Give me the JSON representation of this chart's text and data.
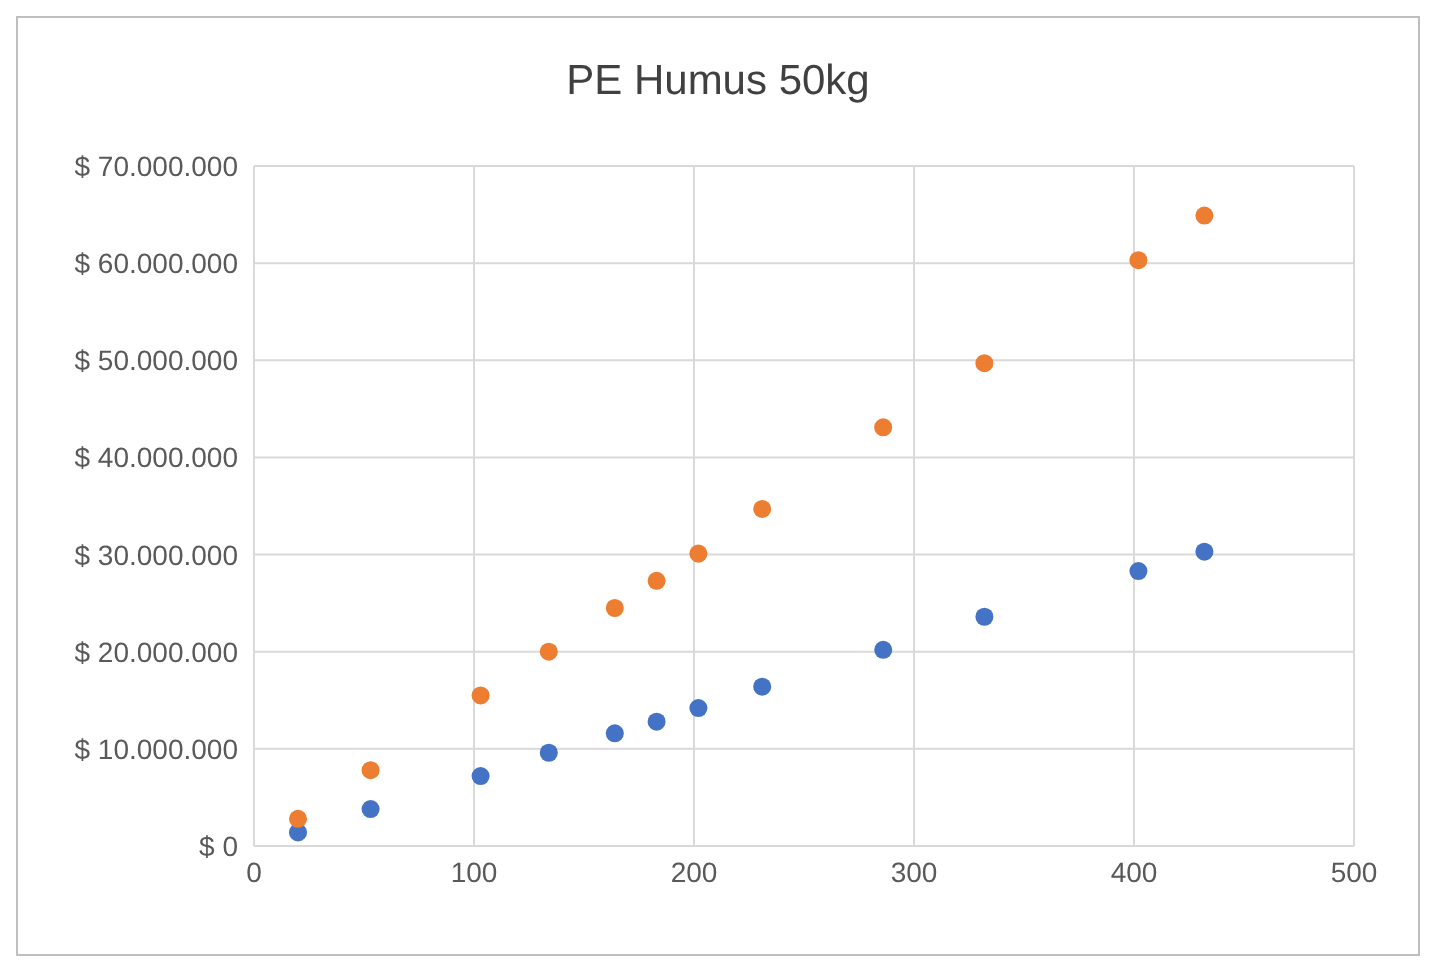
{
  "chart_data": {
    "type": "scatter",
    "title": "PE Humus 50kg",
    "x": [
      20,
      53,
      103,
      134,
      164,
      183,
      202,
      231,
      286,
      332,
      402,
      432
    ],
    "series": [
      {
        "color": "#4472c4",
        "values": [
          1400000,
          3800000,
          7200000,
          9600000,
          11600000,
          12800000,
          14200000,
          16400000,
          20200000,
          23600000,
          28300000,
          30300000
        ]
      },
      {
        "color": "#ed7d31",
        "values": [
          2800000,
          7800000,
          15500000,
          20000000,
          24500000,
          27300000,
          30100000,
          34700000,
          43100000,
          49700000,
          60300000,
          64900000
        ]
      }
    ],
    "xlim": [
      0,
      500
    ],
    "xticks": [
      0,
      100,
      200,
      300,
      400,
      500
    ],
    "ylim": [
      0,
      70000000
    ],
    "yticks": [
      {
        "value": 0,
        "label": "$ 0"
      },
      {
        "value": 10000000,
        "label": "$ 10.000.000"
      },
      {
        "value": 20000000,
        "label": "$ 20.000.000"
      },
      {
        "value": 30000000,
        "label": "$ 30.000.000"
      },
      {
        "value": 40000000,
        "label": "$ 40.000.000"
      },
      {
        "value": 50000000,
        "label": "$ 50.000.000"
      },
      {
        "value": 60000000,
        "label": "$ 60.000.000"
      },
      {
        "value": 70000000,
        "label": "$ 70.000.000"
      }
    ],
    "grid": true,
    "marker": "circle",
    "legend": false
  }
}
